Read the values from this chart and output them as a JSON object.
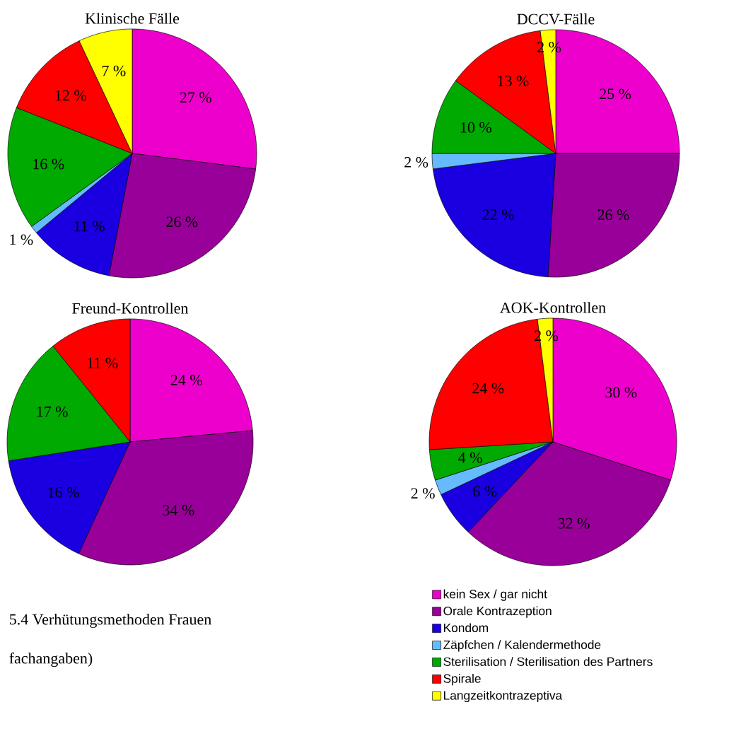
{
  "chart_data": [
    {
      "type": "pie",
      "title": "Klinische Fälle",
      "categories": [
        null,
        null,
        null,
        null,
        null,
        null,
        null
      ],
      "values": [
        27,
        26,
        11,
        1,
        16,
        12,
        7
      ],
      "value_labels": [
        "27 %",
        "26 %",
        "11 %",
        "1 %",
        "16 %",
        "12 %",
        "7 %"
      ],
      "colors": [
        "#ee00cc",
        "#990099",
        "#1a00e0",
        "#66bbff",
        "#00aa00",
        "#ff0000",
        "#ffff00"
      ]
    },
    {
      "type": "pie",
      "title": "DCCV-Fälle",
      "categories": [
        null,
        null,
        null,
        null,
        null,
        null,
        null
      ],
      "values": [
        25,
        26,
        22,
        2,
        10,
        13,
        2
      ],
      "value_labels": [
        "25 %",
        "26 %",
        "22 %",
        "2 %",
        "10 %",
        "13 %",
        "2 %"
      ],
      "colors": [
        "#ee00cc",
        "#990099",
        "#1a00e0",
        "#66bbff",
        "#00aa00",
        "#ff0000",
        "#ffff00"
      ]
    },
    {
      "type": "pie",
      "title": "Freund-Kontrollen",
      "categories": [
        null,
        null,
        null,
        null,
        null,
        null,
        null
      ],
      "values": [
        24,
        34,
        16,
        null,
        17,
        11,
        null
      ],
      "value_labels": [
        "24 %",
        "34 %",
        "16 %",
        null,
        "17 %",
        "11 %",
        null
      ],
      "colors": [
        "#ee00cc",
        "#990099",
        "#1a00e0",
        "#66bbff",
        "#00aa00",
        "#ff0000",
        "#ffff00"
      ],
      "annotations": [
        "5.4 Verhütungsmethoden Frauen",
        "fachangaben)"
      ]
    },
    {
      "type": "pie",
      "title": "AOK-Kontrollen",
      "categories": [
        "kein Sex / gar nicht",
        "Orale Kontrazeption",
        "Kondom",
        "Zäpfchen / Kalendermethode",
        "Sterilisation / Sterilisation des Partners",
        "Spirale",
        "Langzeitkontrazeptiva"
      ],
      "values": [
        30,
        32,
        6,
        2,
        4,
        24,
        2
      ],
      "value_labels": [
        "30 %",
        "32 %",
        "6 %",
        "2 %",
        "4 %",
        "24 %",
        "2 %"
      ],
      "colors": [
        "#ee00cc",
        "#990099",
        "#1a00e0",
        "#66bbff",
        "#00aa00",
        "#ff0000",
        "#ffff00"
      ],
      "legend": "bottom"
    }
  ]
}
